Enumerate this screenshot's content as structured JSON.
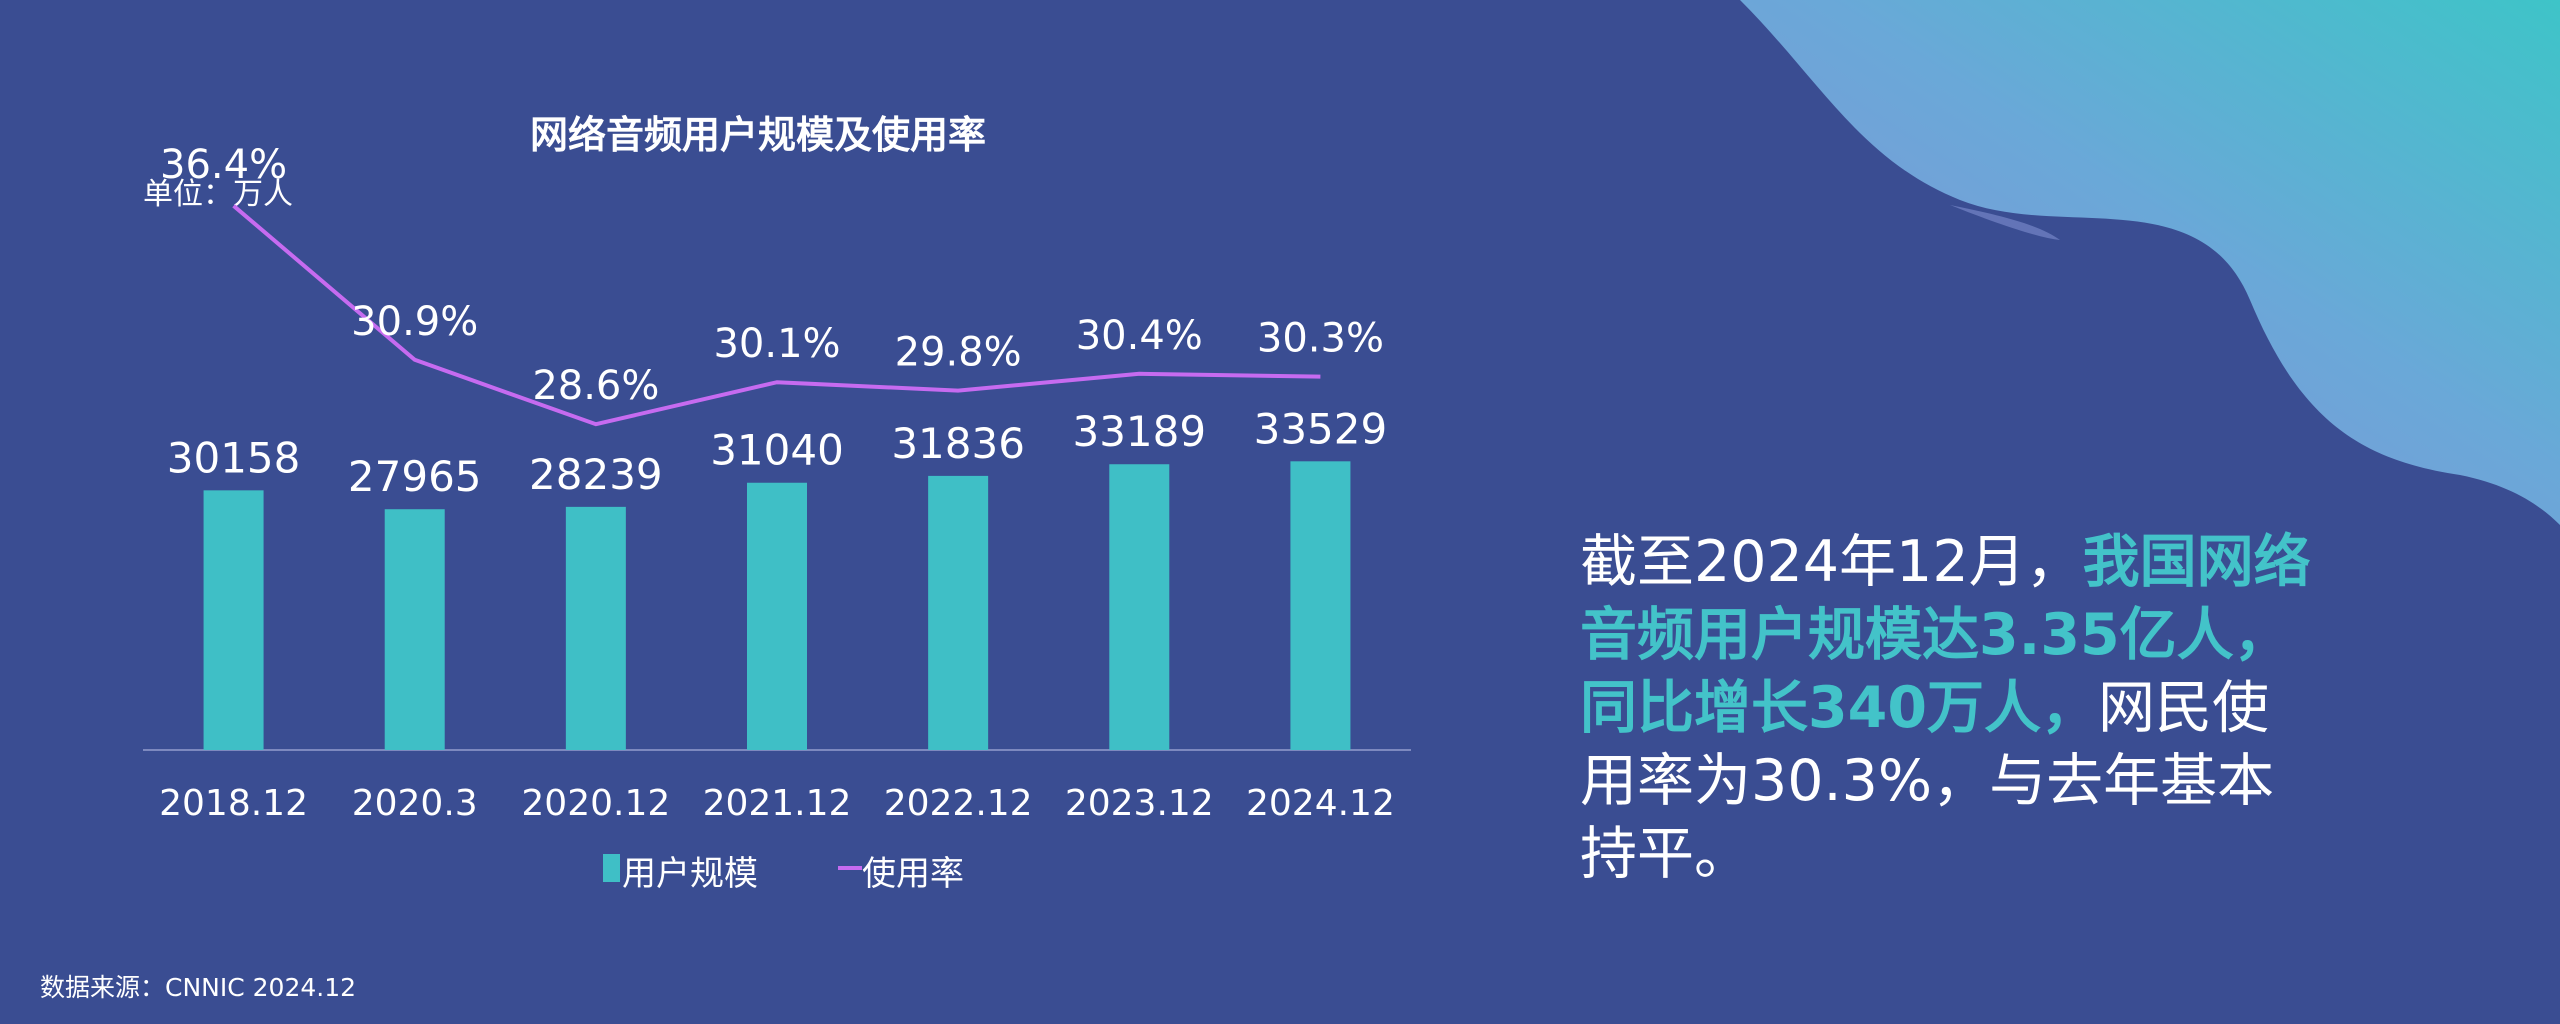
{
  "chart_data": {
    "type": "bar+line",
    "title": "网络音频用户规模及使用率",
    "unit": "单位：万人",
    "categories": [
      "2018.12",
      "2020.3",
      "2020.12",
      "2021.12",
      "2022.12",
      "2023.12",
      "2024.12"
    ],
    "series": [
      {
        "name": "用户规模",
        "type": "bar",
        "values": [
          30158,
          27965,
          28239,
          31040,
          31836,
          33189,
          33529
        ],
        "labels": [
          "30158",
          "27965",
          "28239",
          "31040",
          "31836",
          "33189",
          "33529"
        ],
        "color": "#3fbfc6"
      },
      {
        "name": "使用率",
        "type": "line",
        "values": [
          36.4,
          30.9,
          28.6,
          30.1,
          29.8,
          30.4,
          30.3
        ],
        "labels": [
          "36.4%",
          "30.9%",
          "28.6%",
          "30.1%",
          "29.8%",
          "30.4%",
          "30.3%"
        ],
        "color": "#c66bf0"
      }
    ],
    "legend_position": "bottom",
    "grid": false
  },
  "source": "数据来源：CNNIC 2024.12",
  "summary": {
    "part1": "截至2024年12月，",
    "part2": "我国网络音频用户规模达3.35亿人，同比增长340万人，",
    "part3": "网民使用率为30.3%，与去年基本持平。"
  },
  "colors": {
    "background": "#3a4d92",
    "accent_teal": "#43c3c9",
    "wave_start": "#8a8fd8",
    "wave_end": "#3ec4c8"
  }
}
